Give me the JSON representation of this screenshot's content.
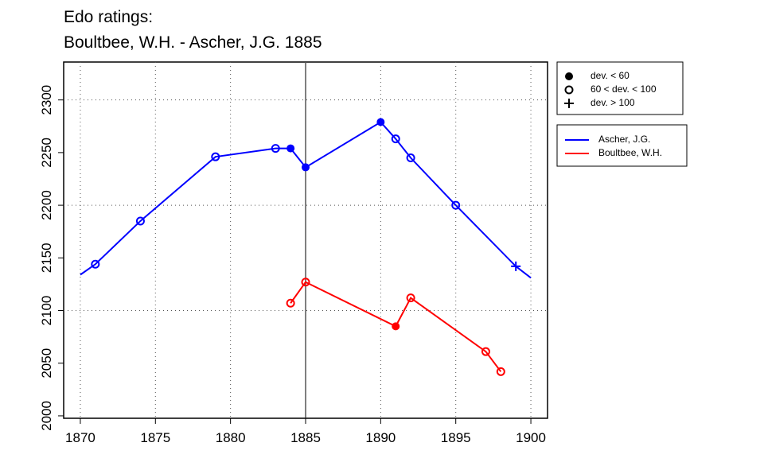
{
  "chart_data": {
    "type": "line",
    "title": [
      "Edo ratings:",
      "Boultbee, W.H. - Ascher, J.G. 1885"
    ],
    "xlim": [
      1868.89,
      1901.11
    ],
    "ylim": [
      1997.7,
      2336
    ],
    "xticks": [
      1870,
      1875,
      1880,
      1885,
      1890,
      1895,
      1900
    ],
    "yticks": [
      2000,
      2050,
      2100,
      2150,
      2200,
      2250,
      2300
    ],
    "xgrid": [
      1870,
      1875,
      1880,
      1890,
      1895,
      1900
    ],
    "ygrid": [
      2100,
      2200,
      2300
    ],
    "vline": 1885,
    "marker_legend": [
      {
        "label": "dev. < 60",
        "shape": "filled"
      },
      {
        "label": "60 < dev. < 100",
        "shape": "open"
      },
      {
        "label": "dev. > 100",
        "shape": "plus"
      }
    ],
    "series": [
      {
        "name": "Ascher, J.G.",
        "color": "#0000ff",
        "x": [
          1870,
          1871,
          1874,
          1879,
          1883,
          1884,
          1885,
          1890,
          1891,
          1892,
          1895,
          1899,
          1900
        ],
        "values": [
          2134,
          2144,
          2185,
          2246,
          2254,
          2254,
          2236,
          2279,
          2263,
          2245,
          2200,
          2142,
          2131
        ],
        "markers": [
          null,
          1,
          1,
          1,
          1,
          0,
          0,
          0,
          1,
          1,
          1,
          2,
          null
        ]
      },
      {
        "name": "Boultbee, W.H.",
        "color": "#ff0000",
        "x": [
          1884,
          1885,
          1891,
          1892,
          1897,
          1898
        ],
        "values": [
          2107,
          2127,
          2085,
          2112,
          2061,
          2042
        ],
        "markers": [
          1,
          1,
          0,
          1,
          1,
          1
        ]
      }
    ]
  }
}
